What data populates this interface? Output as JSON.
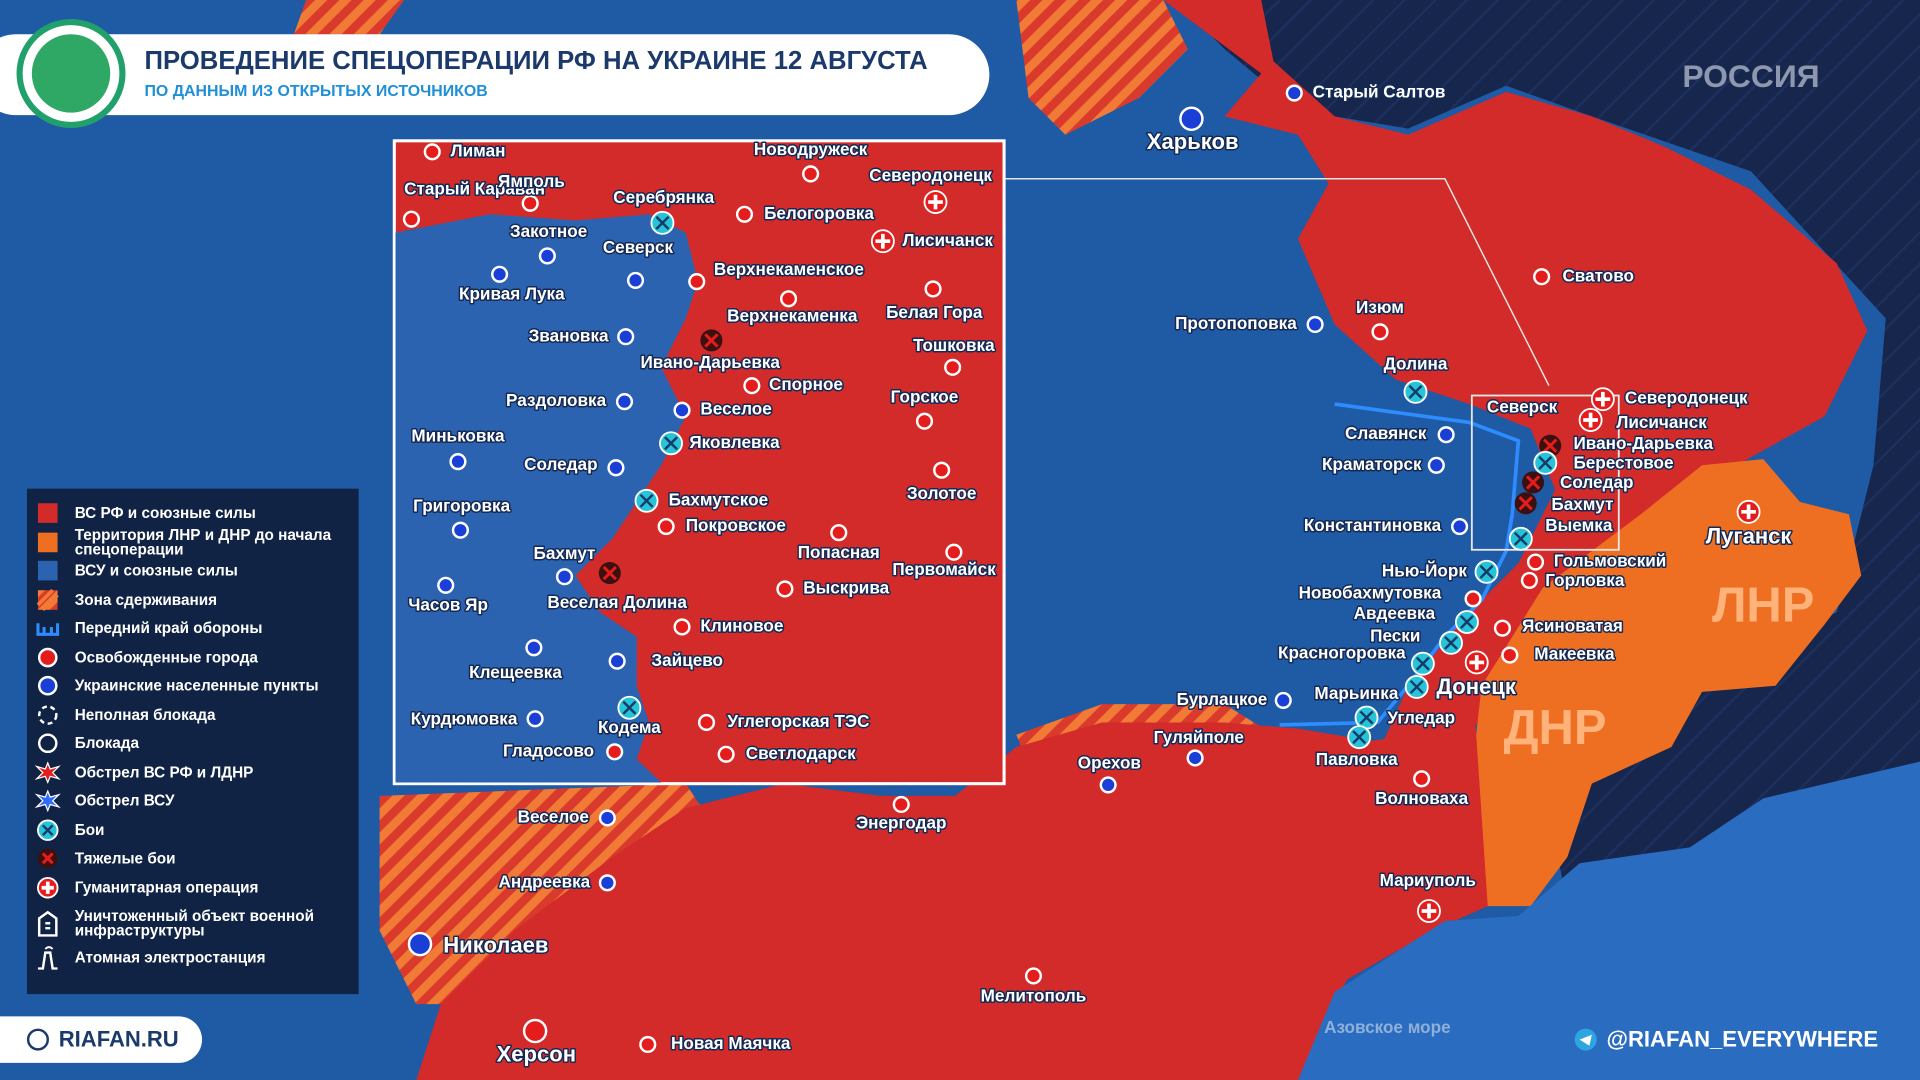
{
  "header": {
    "title": "ПРОВЕДЕНИЕ СПЕЦОПЕРАЦИИ РФ НА УКРАИНЕ 12 АВГУСТА",
    "subtitle": "ПО ДАННЫМ ИЗ ОТКРЫТЫХ ИСТОЧНИКОВ"
  },
  "map": {
    "region_labels": [
      "РОССИЯ",
      "ЛНР",
      "ДНР",
      "Азовское море"
    ],
    "cities": [
      "Харьков",
      "Старый Салтов",
      "Сватово",
      "Изюм",
      "Протопоповка",
      "Долина",
      "Северск",
      "Северодонецк",
      "Лисичанск",
      "Славянск",
      "Краматорск",
      "Ивано-Дарьевка",
      "Берестовое",
      "Соледар",
      "Бахмут",
      "Выемка",
      "Константиновка",
      "Луганск",
      "Гольмовский",
      "Горловка",
      "Нью-Йорк",
      "Новобахмутовка",
      "Авдеевка",
      "Ясиноватая",
      "Пески",
      "Макеевка",
      "Красногоровка",
      "Донецк",
      "Марьинка",
      "Бурлацкое",
      "Угледар",
      "Гуляйполе",
      "Павловка",
      "Орехов",
      "Волноваха",
      "Энергодар",
      "Мариуполь",
      "Веселое",
      "Андреевка",
      "Николаев",
      "Мелитополь",
      "Херсон",
      "Новая Маячка"
    ]
  },
  "inset": {
    "cities": [
      "Лиман",
      "Старый Караван",
      "Ямполь",
      "Новодружеск",
      "Северодонецк",
      "Серебрянка",
      "Белогоровка",
      "Закотное",
      "Лисичанск",
      "Северск",
      "Верхнекаменское",
      "Кривая Лука",
      "Верхнекаменка",
      "Белая Гора",
      "Звановка",
      "Ивано-Дарьевка",
      "Тошковка",
      "Спорное",
      "Раздоловка",
      "Веселое",
      "Горское",
      "Миньковка",
      "Яковлевка",
      "Соледар",
      "Золотое",
      "Григоровка",
      "Бахмутское",
      "Покровское",
      "Попасная",
      "Первомайск",
      "Бахмут",
      "Часов Яр",
      "Выскрива",
      "Веселая Долина",
      "Клиновое",
      "Клещеевка",
      "Зайцево",
      "Курдюмовка",
      "Кодема",
      "Углегорская ТЭС",
      "Гладосово",
      "Светлодарск"
    ]
  },
  "legend": {
    "items": [
      "ВС РФ и союзные силы",
      "Территория ЛНР и ДНР до начала спецоперации",
      "ВСУ и союзные силы",
      "Зона сдерживания",
      "Передний край обороны",
      "Освобожденные города",
      "Украинские населенные пункты",
      "Неполная блокада",
      "Блокада",
      "Обстрел ВС РФ и ЛДНР",
      "Обстрел ВСУ",
      "Бои",
      "Тяжелые бои",
      "Гуманитарная операция",
      "Уничтоженный объект военной инфраструктуры",
      "Атомная электростанция"
    ]
  },
  "footer": {
    "site": "RIAFAN.RU",
    "telegram": "@RIAFAN_EVERYWHERE"
  }
}
